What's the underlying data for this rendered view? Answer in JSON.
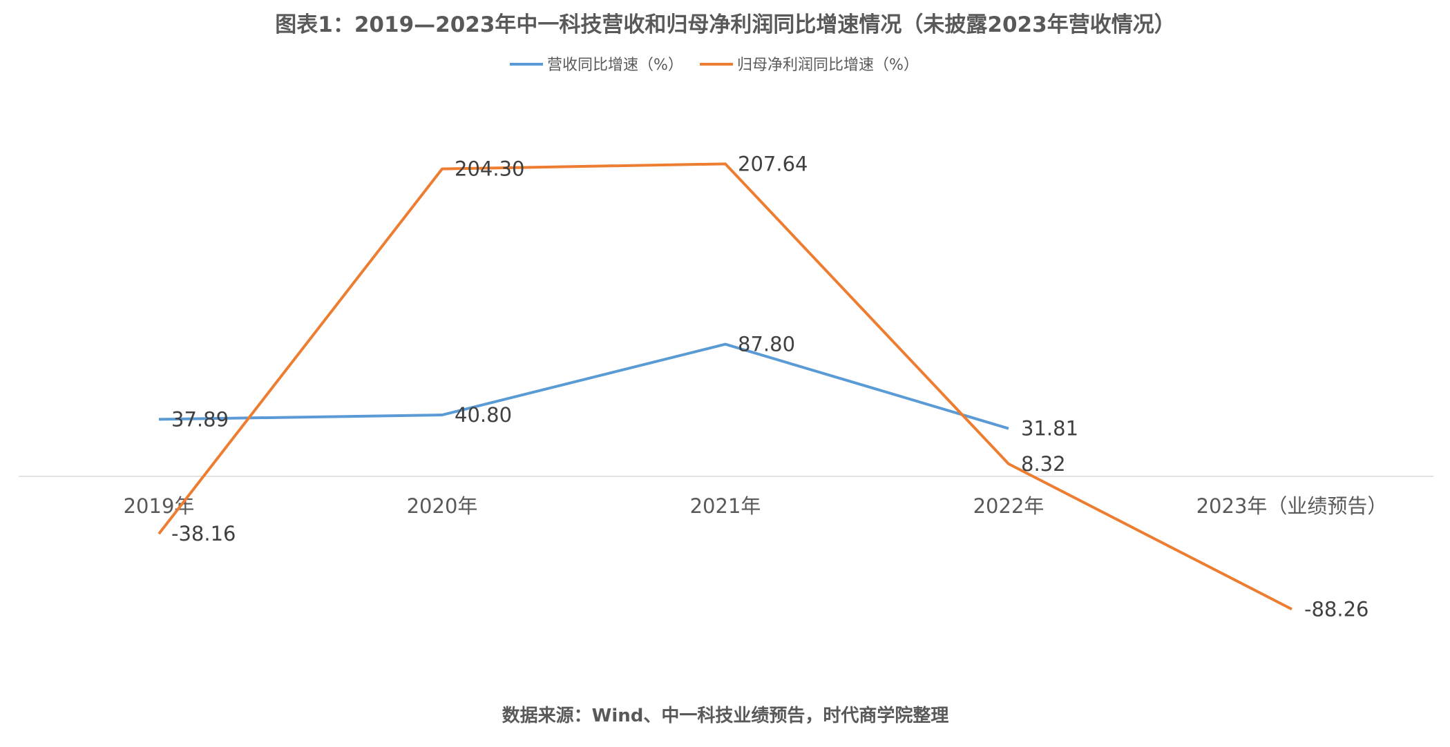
{
  "chart_data": {
    "type": "line",
    "title": "图表1：2019—2023年中一科技营收和归母净利润同比增速情况（未披露2023年营收情况）",
    "categories": [
      "2019年",
      "2020年",
      "2021年",
      "2022年",
      "2023年（业绩预告）"
    ],
    "series": [
      {
        "name": "营收同比增速（%）",
        "color": "#5B9BD5",
        "values": [
          37.89,
          40.8,
          87.8,
          31.81,
          null
        ],
        "labels": [
          "37.89",
          "40.80",
          "87.80",
          "31.81",
          ""
        ]
      },
      {
        "name": "归母净利润同比增速（%）",
        "color": "#ED7D31",
        "values": [
          -38.16,
          204.3,
          207.64,
          8.32,
          -88.26
        ],
        "labels": [
          "-38.16",
          "204.30",
          "207.64",
          "8.32",
          "-88.26"
        ]
      }
    ],
    "legend_position": "top",
    "grid": false,
    "ylim": [
      -120,
      250
    ],
    "source": "数据来源：Wind、中一科技业绩预告，时代商学院整理"
  }
}
